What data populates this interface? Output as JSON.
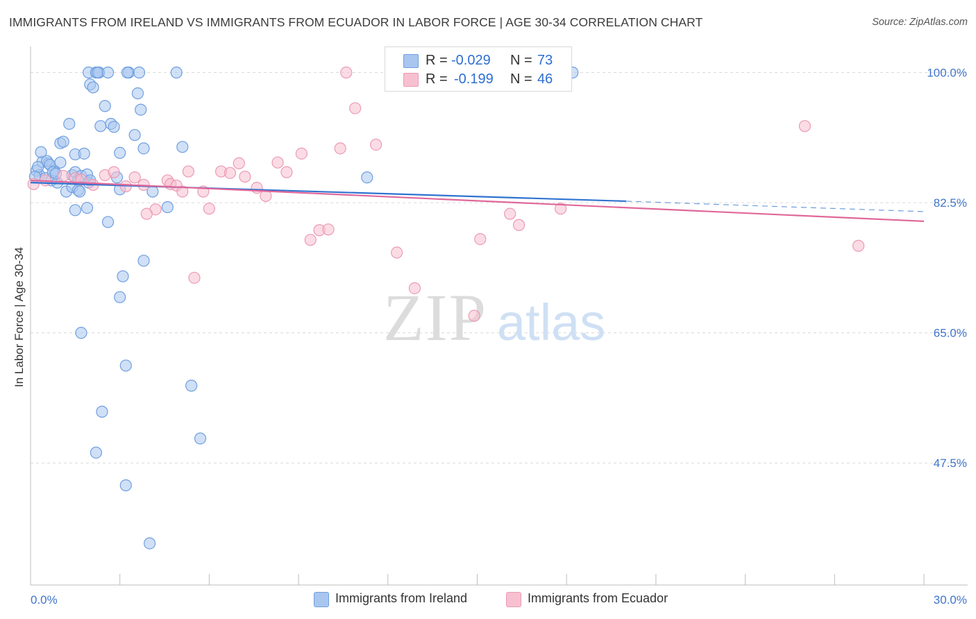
{
  "title": "IMMIGRANTS FROM IRELAND VS IMMIGRANTS FROM ECUADOR IN LABOR FORCE | AGE 30-34 CORRELATION CHART",
  "source": "Source: ZipAtlas.com",
  "watermark": {
    "zip": "ZIP",
    "atlas": "atlas"
  },
  "legend": {
    "rows": [
      {
        "r_label": "R =",
        "r_value": "-0.029",
        "n_label": "N =",
        "n_value": "73"
      },
      {
        "r_label": "R =",
        "r_value": "-0.199",
        "n_label": "N =",
        "n_value": "46"
      }
    ]
  },
  "bottom_legend": {
    "ireland": "Immigrants from Ireland",
    "ecuador": "Immigrants from Ecuador"
  },
  "colors": {
    "ireland_fill": "#a9c6ef",
    "ireland_stroke": "#6f9fe0",
    "ireland_line": "#2f73d0",
    "ecuador_fill": "#f7c0d0",
    "ecuador_stroke": "#ec9ab5",
    "ecuador_line": "#e0689a",
    "tick_label": "#3f75cc",
    "grid": "#d9d9d9"
  },
  "chart_data": {
    "type": "scatter",
    "title": "IMMIGRANTS FROM IRELAND VS IMMIGRANTS FROM ECUADOR IN LABOR FORCE | AGE 30-34 CORRELATION CHART",
    "xlabel": "",
    "ylabel": "In Labor Force | Age 30-34",
    "xlim": [
      0,
      30
    ],
    "ylim": [
      31.1,
      103.5
    ],
    "x_tick_labels": [
      {
        "value": 0,
        "label": "0.0%"
      },
      {
        "value": 30,
        "label": "30.0%"
      }
    ],
    "y_tick_labels": [
      {
        "value": 100,
        "label": "100.0%"
      },
      {
        "value": 82.5,
        "label": "82.5%"
      },
      {
        "value": 65,
        "label": "65.0%"
      },
      {
        "value": 47.5,
        "label": "47.5%"
      }
    ],
    "grid": true,
    "legend_position": "top-center",
    "series": [
      {
        "name": "Immigrants from Ireland",
        "R": -0.029,
        "N": 73,
        "trend": {
          "x0": 0,
          "y0": 85.2,
          "x1": 20,
          "y1": 82.7,
          "dashed_to_x": 30,
          "dashed_to_y": 81.3
        },
        "points": [
          [
            0.2,
            86.8
          ],
          [
            0.3,
            86.2
          ],
          [
            0.4,
            88.0
          ],
          [
            0.5,
            85.8
          ],
          [
            0.6,
            87.8
          ],
          [
            0.7,
            85.5
          ],
          [
            0.8,
            86.8
          ],
          [
            0.9,
            85.2
          ],
          [
            0.35,
            89.3
          ],
          [
            0.55,
            88.1
          ],
          [
            0.25,
            87.3
          ],
          [
            0.65,
            87.6
          ],
          [
            0.75,
            86.6
          ],
          [
            0.85,
            86.4
          ],
          [
            1.0,
            87.9
          ],
          [
            1.0,
            90.5
          ],
          [
            1.1,
            90.7
          ],
          [
            1.3,
            93.1
          ],
          [
            1.4,
            86.2
          ],
          [
            1.5,
            86.6
          ],
          [
            1.6,
            85.5
          ],
          [
            1.7,
            86.1
          ],
          [
            1.5,
            89.0
          ],
          [
            1.8,
            89.1
          ],
          [
            1.9,
            86.3
          ],
          [
            1.2,
            84.0
          ],
          [
            1.4,
            84.6
          ],
          [
            1.6,
            84.2
          ],
          [
            1.65,
            84.0
          ],
          [
            1.5,
            81.5
          ],
          [
            1.9,
            81.8
          ],
          [
            1.95,
            85.2
          ],
          [
            2.0,
            85.5
          ],
          [
            2.0,
            98.4
          ],
          [
            2.1,
            98.0
          ],
          [
            1.95,
            100.0
          ],
          [
            2.2,
            100.0
          ],
          [
            2.3,
            100.0
          ],
          [
            2.25,
            100.0
          ],
          [
            2.6,
            100.0
          ],
          [
            2.5,
            95.5
          ],
          [
            2.35,
            92.8
          ],
          [
            2.7,
            93.1
          ],
          [
            2.8,
            92.7
          ],
          [
            2.9,
            85.9
          ],
          [
            3.0,
            89.2
          ],
          [
            2.6,
            79.9
          ],
          [
            3.0,
            84.3
          ],
          [
            3.1,
            72.6
          ],
          [
            3.3,
            100.0
          ],
          [
            3.25,
            100.0
          ],
          [
            3.65,
            100.0
          ],
          [
            3.6,
            97.2
          ],
          [
            3.7,
            95.0
          ],
          [
            3.8,
            89.8
          ],
          [
            3.5,
            91.6
          ],
          [
            3.8,
            74.7
          ],
          [
            4.1,
            84.0
          ],
          [
            3.0,
            69.8
          ],
          [
            4.6,
            81.9
          ],
          [
            4.9,
            100.0
          ],
          [
            5.1,
            90.0
          ],
          [
            1.7,
            65.0
          ],
          [
            3.2,
            60.6
          ],
          [
            5.4,
            57.9
          ],
          [
            2.4,
            54.4
          ],
          [
            5.7,
            50.8
          ],
          [
            2.2,
            48.9
          ],
          [
            3.2,
            44.5
          ],
          [
            4.0,
            36.7
          ],
          [
            11.3,
            85.9
          ],
          [
            18.2,
            100.0
          ],
          [
            0.15,
            86.0
          ]
        ]
      },
      {
        "name": "Immigrants from Ecuador",
        "R": -0.199,
        "N": 46,
        "trend": {
          "x0": 0,
          "y0": 85.5,
          "x1": 30,
          "y1": 80.0
        },
        "points": [
          [
            0.1,
            85.0
          ],
          [
            0.5,
            85.5
          ],
          [
            1.1,
            86.1
          ],
          [
            1.5,
            85.8
          ],
          [
            1.7,
            85.6
          ],
          [
            2.1,
            84.9
          ],
          [
            2.5,
            86.2
          ],
          [
            2.8,
            86.6
          ],
          [
            3.2,
            84.7
          ],
          [
            3.5,
            85.9
          ],
          [
            3.8,
            84.9
          ],
          [
            4.2,
            81.6
          ],
          [
            4.6,
            85.5
          ],
          [
            4.7,
            85.0
          ],
          [
            4.9,
            84.8
          ],
          [
            5.1,
            84.0
          ],
          [
            5.3,
            86.7
          ],
          [
            5.5,
            72.4
          ],
          [
            5.8,
            84.0
          ],
          [
            6.0,
            81.7
          ],
          [
            6.4,
            86.7
          ],
          [
            6.7,
            86.5
          ],
          [
            7.0,
            87.8
          ],
          [
            7.2,
            86.0
          ],
          [
            7.6,
            84.5
          ],
          [
            7.9,
            83.4
          ],
          [
            8.3,
            87.9
          ],
          [
            8.6,
            86.6
          ],
          [
            9.1,
            89.1
          ],
          [
            9.4,
            77.5
          ],
          [
            9.7,
            78.8
          ],
          [
            10.0,
            78.9
          ],
          [
            10.4,
            89.8
          ],
          [
            10.6,
            100.0
          ],
          [
            10.9,
            95.2
          ],
          [
            11.6,
            90.3
          ],
          [
            12.3,
            75.8
          ],
          [
            12.9,
            71.0
          ],
          [
            14.9,
            67.3
          ],
          [
            15.1,
            77.6
          ],
          [
            16.1,
            81.0
          ],
          [
            16.4,
            79.5
          ],
          [
            17.8,
            81.7
          ],
          [
            26.0,
            92.8
          ],
          [
            27.8,
            76.7
          ],
          [
            3.9,
            81.0
          ]
        ]
      }
    ]
  }
}
